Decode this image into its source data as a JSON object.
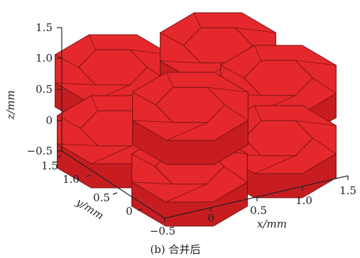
{
  "axes": {
    "z": {
      "label": "z/mm",
      "ticks": [
        "1.5",
        "1.0",
        "0.5",
        "0",
        "−0.5"
      ]
    },
    "y": {
      "label": "y/mm",
      "ticks": [
        "1.5",
        "1.0",
        "0.5",
        "0"
      ]
    },
    "x": {
      "label": "x/mm",
      "ticks": [
        "−0.5",
        "0",
        "0.5",
        "1.0",
        "1.5"
      ]
    }
  },
  "caption": "(b) 合并后",
  "colors": {
    "face_top": "#e5282c",
    "face_front": "#dd2428",
    "face_side": "#c71d21",
    "edge": "#7a1414",
    "axis": "#222222"
  },
  "grains": [
    {
      "id": "back-left",
      "layer": "top"
    },
    {
      "id": "back-center",
      "layer": "top"
    },
    {
      "id": "back-right",
      "layer": "top"
    },
    {
      "id": "bottom-left",
      "layer": "bottom"
    },
    {
      "id": "bottom-right",
      "layer": "bottom"
    },
    {
      "id": "bottom-front",
      "layer": "bottom"
    },
    {
      "id": "front-center",
      "layer": "top"
    }
  ]
}
